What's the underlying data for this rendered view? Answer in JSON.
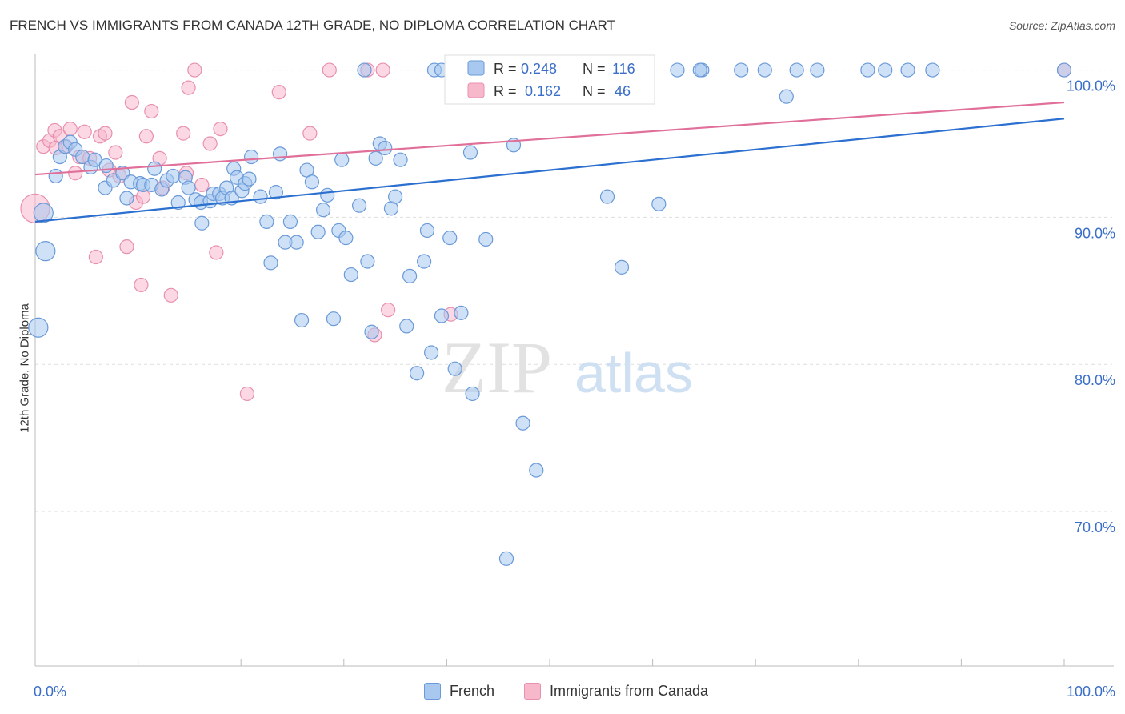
{
  "title": "FRENCH VS IMMIGRANTS FROM CANADA 12TH GRADE, NO DIPLOMA CORRELATION CHART",
  "source": "Source: ZipAtlas.com",
  "watermark": {
    "zip": "ZIP",
    "atlas": "atlas"
  },
  "legend": {
    "r_label": "R =",
    "n_label": "N =",
    "french": {
      "r": "0.248",
      "n": "116"
    },
    "canada": {
      "r": "0.162",
      "n": "46"
    }
  },
  "colors": {
    "french_fill": "#a8c8f0",
    "french_stroke": "#6a9ad8",
    "french_line": "#2b6fcf",
    "canada_fill": "#f8b8cc",
    "canada_stroke": "#e890ae",
    "canada_line": "#e0709a",
    "value_text": "#3a6ec8",
    "grid": "#dddddd"
  },
  "chart_data": {
    "type": "scatter",
    "title": "FRENCH VS IMMIGRANTS FROM CANADA 12TH GRADE, NO DIPLOMA CORRELATION CHART",
    "xlabel": "",
    "ylabel": "12th Grade, No Diploma",
    "xlim": [
      0,
      100
    ],
    "ylim": [
      59.5,
      101.5
    ],
    "x_tick_labels": [
      "0.0%",
      "100.0%"
    ],
    "y_ticks": [
      100,
      90,
      80,
      70
    ],
    "y_tick_labels": [
      "100.0%",
      "90.0%",
      "80.0%",
      "70.0%"
    ],
    "grid": true,
    "legend_position": "top-center",
    "series": [
      {
        "name": "French",
        "r": 0.248,
        "n": 116,
        "trend": {
          "x": [
            0,
            100
          ],
          "y": [
            89.7,
            96.7
          ]
        },
        "points": [
          [
            0.3,
            82.5
          ],
          [
            0.8,
            90.3
          ],
          [
            1.0,
            87.7
          ],
          [
            2.0,
            92.8
          ],
          [
            2.4,
            94.1
          ],
          [
            2.9,
            94.8
          ],
          [
            3.4,
            95.1
          ],
          [
            3.9,
            94.6
          ],
          [
            4.6,
            94.1
          ],
          [
            5.4,
            93.4
          ],
          [
            5.8,
            93.9
          ],
          [
            6.9,
            93.5
          ],
          [
            6.8,
            92.0
          ],
          [
            7.6,
            92.5
          ],
          [
            8.5,
            93.0
          ],
          [
            8.9,
            91.3
          ],
          [
            9.3,
            92.4
          ],
          [
            10.2,
            92.3
          ],
          [
            10.5,
            92.2
          ],
          [
            11.3,
            92.2
          ],
          [
            11.6,
            93.3
          ],
          [
            12.3,
            91.9
          ],
          [
            12.8,
            92.5
          ],
          [
            13.4,
            92.8
          ],
          [
            13.9,
            91.0
          ],
          [
            14.6,
            92.7
          ],
          [
            14.9,
            92.0
          ],
          [
            15.6,
            91.2
          ],
          [
            16.1,
            91.0
          ],
          [
            16.2,
            89.6
          ],
          [
            17.0,
            91.1
          ],
          [
            17.3,
            91.6
          ],
          [
            17.9,
            91.6
          ],
          [
            18.2,
            91.3
          ],
          [
            18.6,
            92.0
          ],
          [
            19.1,
            91.3
          ],
          [
            19.3,
            93.3
          ],
          [
            19.6,
            92.7
          ],
          [
            20.1,
            91.8
          ],
          [
            20.4,
            92.3
          ],
          [
            20.8,
            92.6
          ],
          [
            21.0,
            94.1
          ],
          [
            21.9,
            91.4
          ],
          [
            22.5,
            89.7
          ],
          [
            22.9,
            86.9
          ],
          [
            23.4,
            91.7
          ],
          [
            23.8,
            94.3
          ],
          [
            24.3,
            88.3
          ],
          [
            24.8,
            89.7
          ],
          [
            25.4,
            88.3
          ],
          [
            25.9,
            83.0
          ],
          [
            26.4,
            93.2
          ],
          [
            26.9,
            92.4
          ],
          [
            27.5,
            89.0
          ],
          [
            28.0,
            90.5
          ],
          [
            28.4,
            91.5
          ],
          [
            29.0,
            83.1
          ],
          [
            29.5,
            89.1
          ],
          [
            29.8,
            93.9
          ],
          [
            30.2,
            88.6
          ],
          [
            30.7,
            86.1
          ],
          [
            31.5,
            90.8
          ],
          [
            32.3,
            87.0
          ],
          [
            32.7,
            82.2
          ],
          [
            33.1,
            94.0
          ],
          [
            33.5,
            95.0
          ],
          [
            34.0,
            94.7
          ],
          [
            34.6,
            90.6
          ],
          [
            35.0,
            91.4
          ],
          [
            35.5,
            93.9
          ],
          [
            36.1,
            82.6
          ],
          [
            36.4,
            86.0
          ],
          [
            37.1,
            79.4
          ],
          [
            37.8,
            87.0
          ],
          [
            38.1,
            89.1
          ],
          [
            38.5,
            80.8
          ],
          [
            39.5,
            83.3
          ],
          [
            40.3,
            88.6
          ],
          [
            40.8,
            79.7
          ],
          [
            41.4,
            83.5
          ],
          [
            42.3,
            94.4
          ],
          [
            42.5,
            78.0
          ],
          [
            43.8,
            88.5
          ],
          [
            45.8,
            66.8
          ],
          [
            46.5,
            94.9
          ],
          [
            47.4,
            76.0
          ],
          [
            48.7,
            72.8
          ],
          [
            55.6,
            91.4
          ],
          [
            57.0,
            86.6
          ],
          [
            60.6,
            90.9
          ],
          [
            38.8,
            100.0
          ],
          [
            39.5,
            100.0
          ],
          [
            40.8,
            100.0
          ],
          [
            42.8,
            100.0
          ],
          [
            44.5,
            100.0
          ],
          [
            46.0,
            100.0
          ],
          [
            47.5,
            100.0
          ],
          [
            49.2,
            100.0
          ],
          [
            51.2,
            100.0
          ],
          [
            53.0,
            100.0
          ],
          [
            55.3,
            100.0
          ],
          [
            58.2,
            100.0
          ],
          [
            62.4,
            100.0
          ],
          [
            64.8,
            100.0
          ],
          [
            68.6,
            100.0
          ],
          [
            70.9,
            100.0
          ],
          [
            74.0,
            100.0
          ],
          [
            76.0,
            100.0
          ],
          [
            80.9,
            100.0
          ],
          [
            82.6,
            100.0
          ],
          [
            84.8,
            100.0
          ],
          [
            87.2,
            100.0
          ],
          [
            100.0,
            100.0
          ],
          [
            73.0,
            98.2
          ],
          [
            32.0,
            100.0
          ],
          [
            64.6,
            100.0
          ]
        ]
      },
      {
        "name": "Immigrants from Canada",
        "r": 0.162,
        "n": 46,
        "trend": {
          "x": [
            0,
            100
          ],
          "y": [
            92.9,
            97.8
          ]
        },
        "points": [
          [
            0.0,
            90.6
          ],
          [
            0.8,
            94.8
          ],
          [
            1.4,
            95.2
          ],
          [
            1.9,
            95.9
          ],
          [
            2.4,
            95.5
          ],
          [
            3.0,
            94.8
          ],
          [
            3.4,
            96.0
          ],
          [
            3.9,
            93.0
          ],
          [
            4.3,
            94.1
          ],
          [
            4.8,
            95.8
          ],
          [
            5.3,
            94.0
          ],
          [
            5.9,
            87.3
          ],
          [
            6.3,
            95.5
          ],
          [
            6.8,
            95.7
          ],
          [
            7.2,
            93.2
          ],
          [
            7.8,
            94.4
          ],
          [
            8.2,
            92.8
          ],
          [
            8.9,
            88.0
          ],
          [
            9.4,
            97.8
          ],
          [
            9.8,
            91.0
          ],
          [
            10.3,
            85.4
          ],
          [
            10.8,
            95.5
          ],
          [
            11.3,
            97.2
          ],
          [
            12.1,
            94.0
          ],
          [
            12.4,
            92.0
          ],
          [
            13.2,
            84.7
          ],
          [
            14.4,
            95.7
          ],
          [
            14.9,
            98.8
          ],
          [
            15.5,
            100.0
          ],
          [
            16.2,
            92.2
          ],
          [
            17.0,
            95.0
          ],
          [
            17.6,
            87.6
          ],
          [
            18.0,
            96.0
          ],
          [
            20.6,
            78.0
          ],
          [
            23.7,
            98.5
          ],
          [
            26.7,
            95.7
          ],
          [
            28.6,
            100.0
          ],
          [
            32.3,
            100.0
          ],
          [
            33.0,
            82.0
          ],
          [
            33.8,
            100.0
          ],
          [
            34.3,
            83.7
          ],
          [
            40.4,
            83.4
          ],
          [
            100.0,
            100.0
          ],
          [
            2.0,
            94.7
          ],
          [
            10.5,
            91.4
          ],
          [
            14.7,
            93.0
          ]
        ]
      }
    ]
  }
}
